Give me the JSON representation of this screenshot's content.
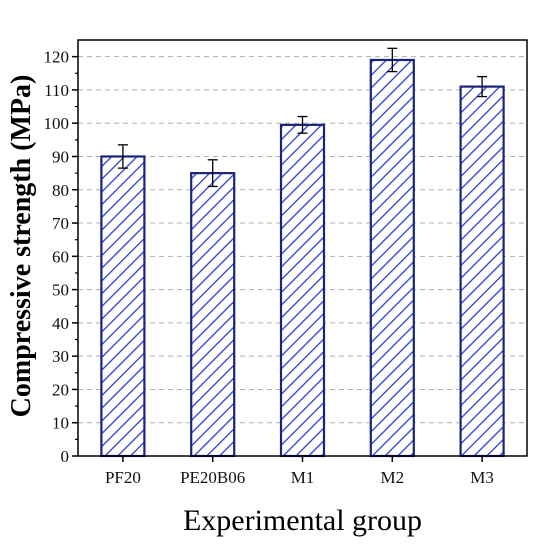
{
  "chart_data": {
    "type": "bar",
    "xlabel": "Experimental group",
    "ylabel": "Compressive strength (MPa)",
    "categories": [
      "PF20",
      "PE20B06",
      "M1",
      "M2",
      "M3"
    ],
    "values": [
      90,
      85,
      99.5,
      119,
      111
    ],
    "errors": [
      3.5,
      4,
      2.5,
      3.5,
      3
    ],
    "ylim": [
      0,
      125
    ],
    "yticks": [
      "0",
      "10",
      "20",
      "30",
      "40",
      "50",
      "60",
      "70",
      "80",
      "90",
      "100",
      "110",
      "120"
    ],
    "grid": true,
    "bar_fill": "#ffffff",
    "hatch_color": "#2a3fd4",
    "bar_edge": "#1a237e",
    "grid_color": "#b0b0b0"
  }
}
